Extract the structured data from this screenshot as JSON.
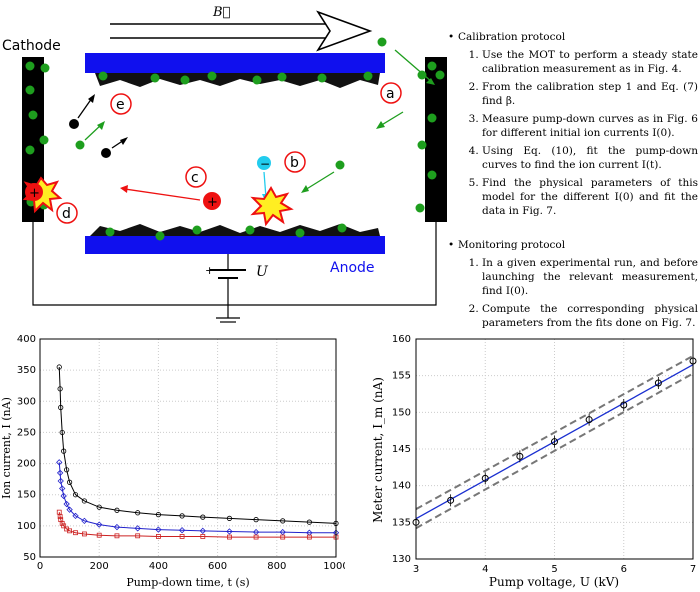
{
  "diagram": {
    "field_label": "B⃗",
    "cathode_label": "Cathode",
    "anode_label": "Anode",
    "voltage_label": "U",
    "plus_sign": "+",
    "minus_sign": "−",
    "markers": [
      "a",
      "b",
      "c",
      "d",
      "e"
    ]
  },
  "calibration": {
    "title": "Calibration protocol",
    "steps": [
      "Use the MOT to perform a steady state calibration measurement as in Fig. 4.",
      "From the calibration step 1 and Eq. (7) find β.",
      "Measure pump-down curves as in Fig. 6 for different initial ion currents I(0).",
      "Using Eq. (10), fit the pump-down curves to find the ion current I(t).",
      "Find the physical parameters of this model for the different I(0) and fit the data in Fig. 7."
    ]
  },
  "monitoring": {
    "title": "Monitoring protocol",
    "steps": [
      "In a given experimental run, and before launching the relevant measurement, find I(0).",
      "Compute the corresponding physical parameters from the fits done on Fig. 7."
    ]
  },
  "chart_data": [
    {
      "type": "scatter",
      "xlabel": "Pump-down time, t (s)",
      "ylabel": "Ion current, I (nA)",
      "xlim": [
        0,
        1000
      ],
      "ylim": [
        50,
        400
      ],
      "xticks": [
        0,
        200,
        400,
        600,
        800,
        1000
      ],
      "yticks": [
        50,
        100,
        150,
        200,
        250,
        300,
        350,
        400
      ],
      "grid": true,
      "series": [
        {
          "color": "#000000",
          "marker": "circle",
          "x": [
            65,
            68,
            70,
            75,
            80,
            90,
            100,
            120,
            150,
            200,
            260,
            330,
            400,
            480,
            550,
            640,
            730,
            820,
            910,
            1000
          ],
          "y": [
            355,
            320,
            290,
            250,
            220,
            190,
            170,
            150,
            140,
            130,
            125,
            121,
            118,
            116,
            114,
            112,
            110,
            108,
            106,
            104
          ]
        },
        {
          "color": "#2222cc",
          "marker": "diamond",
          "x": [
            65,
            68,
            70,
            75,
            80,
            90,
            100,
            120,
            150,
            200,
            260,
            330,
            400,
            480,
            550,
            640,
            730,
            820,
            910,
            1000
          ],
          "y": [
            202,
            185,
            172,
            160,
            148,
            135,
            126,
            116,
            108,
            102,
            98,
            96,
            94,
            93,
            92,
            91,
            90,
            90,
            89,
            89
          ]
        },
        {
          "color": "#cc2222",
          "marker": "square",
          "x": [
            65,
            68,
            70,
            75,
            80,
            90,
            100,
            120,
            150,
            200,
            260,
            330,
            400,
            480,
            550,
            640,
            730,
            820,
            910,
            1000
          ],
          "y": [
            122,
            115,
            110,
            104,
            100,
            95,
            92,
            89,
            87,
            85,
            84,
            84,
            83,
            83,
            83,
            82,
            82,
            82,
            82,
            82
          ]
        }
      ]
    },
    {
      "type": "scatter",
      "xlabel": "Pump voltage, U (kV)",
      "ylabel": "Meter current, I_m (nA)",
      "xlim": [
        3,
        7
      ],
      "ylim": [
        130,
        160
      ],
      "xticks": [
        3,
        4,
        5,
        6,
        7
      ],
      "yticks": [
        130,
        135,
        140,
        145,
        150,
        155,
        160
      ],
      "grid": true,
      "points": {
        "x": [
          3,
          3.5,
          4,
          4.5,
          5,
          5.5,
          6,
          6.5,
          7
        ],
        "y": [
          135,
          138,
          141,
          144,
          146,
          149,
          151,
          154,
          157
        ]
      },
      "fit": {
        "x": [
          3,
          7
        ],
        "y": [
          135.5,
          156.5
        ]
      },
      "bands": {
        "upper": [
          136.8,
          157.7
        ],
        "lower": [
          134.2,
          155.3
        ]
      }
    }
  ]
}
